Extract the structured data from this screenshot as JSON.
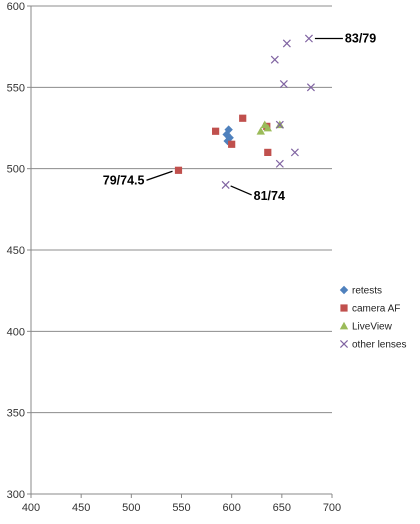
{
  "chart_data": {
    "type": "scatter",
    "title": "",
    "xlabel": "",
    "ylabel": "",
    "xlim": [
      400,
      700
    ],
    "ylim": [
      300,
      600
    ],
    "x_ticks": [
      400,
      450,
      500,
      550,
      600,
      650,
      700
    ],
    "y_ticks": [
      300,
      350,
      400,
      450,
      500,
      550,
      600
    ],
    "grid": {
      "horizontal": true,
      "vertical": false
    },
    "legend_position": "right",
    "series": [
      {
        "name": "retests",
        "marker": "diamond",
        "color": "#4F81BD",
        "points": [
          [
            597,
            524
          ],
          [
            595,
            521
          ],
          [
            596,
            517
          ],
          [
            598,
            519
          ]
        ]
      },
      {
        "name": "camera AF",
        "marker": "square",
        "color": "#C0504D",
        "points": [
          [
            547,
            499
          ],
          [
            584,
            523
          ],
          [
            600,
            515
          ],
          [
            611,
            531
          ],
          [
            635,
            526
          ],
          [
            636,
            510
          ]
        ]
      },
      {
        "name": "LiveView",
        "marker": "triangle",
        "color": "#9BBB59",
        "points": [
          [
            629,
            523
          ],
          [
            633,
            527
          ],
          [
            636,
            525
          ],
          [
            648,
            527
          ]
        ]
      },
      {
        "name": "other lenses",
        "marker": "x",
        "color": "#8064A2",
        "points": [
          [
            594,
            490
          ],
          [
            643,
            567
          ],
          [
            652,
            552
          ],
          [
            655,
            577
          ],
          [
            648,
            503
          ],
          [
            663,
            510
          ],
          [
            677,
            580
          ],
          [
            679,
            550
          ],
          [
            648,
            527
          ]
        ]
      }
    ],
    "annotations": [
      {
        "text": "83/79",
        "point": [
          677,
          580
        ]
      },
      {
        "text": "79/74.5",
        "point": [
          547,
          499
        ]
      },
      {
        "text": "81/74",
        "point": [
          594,
          490
        ]
      }
    ]
  }
}
